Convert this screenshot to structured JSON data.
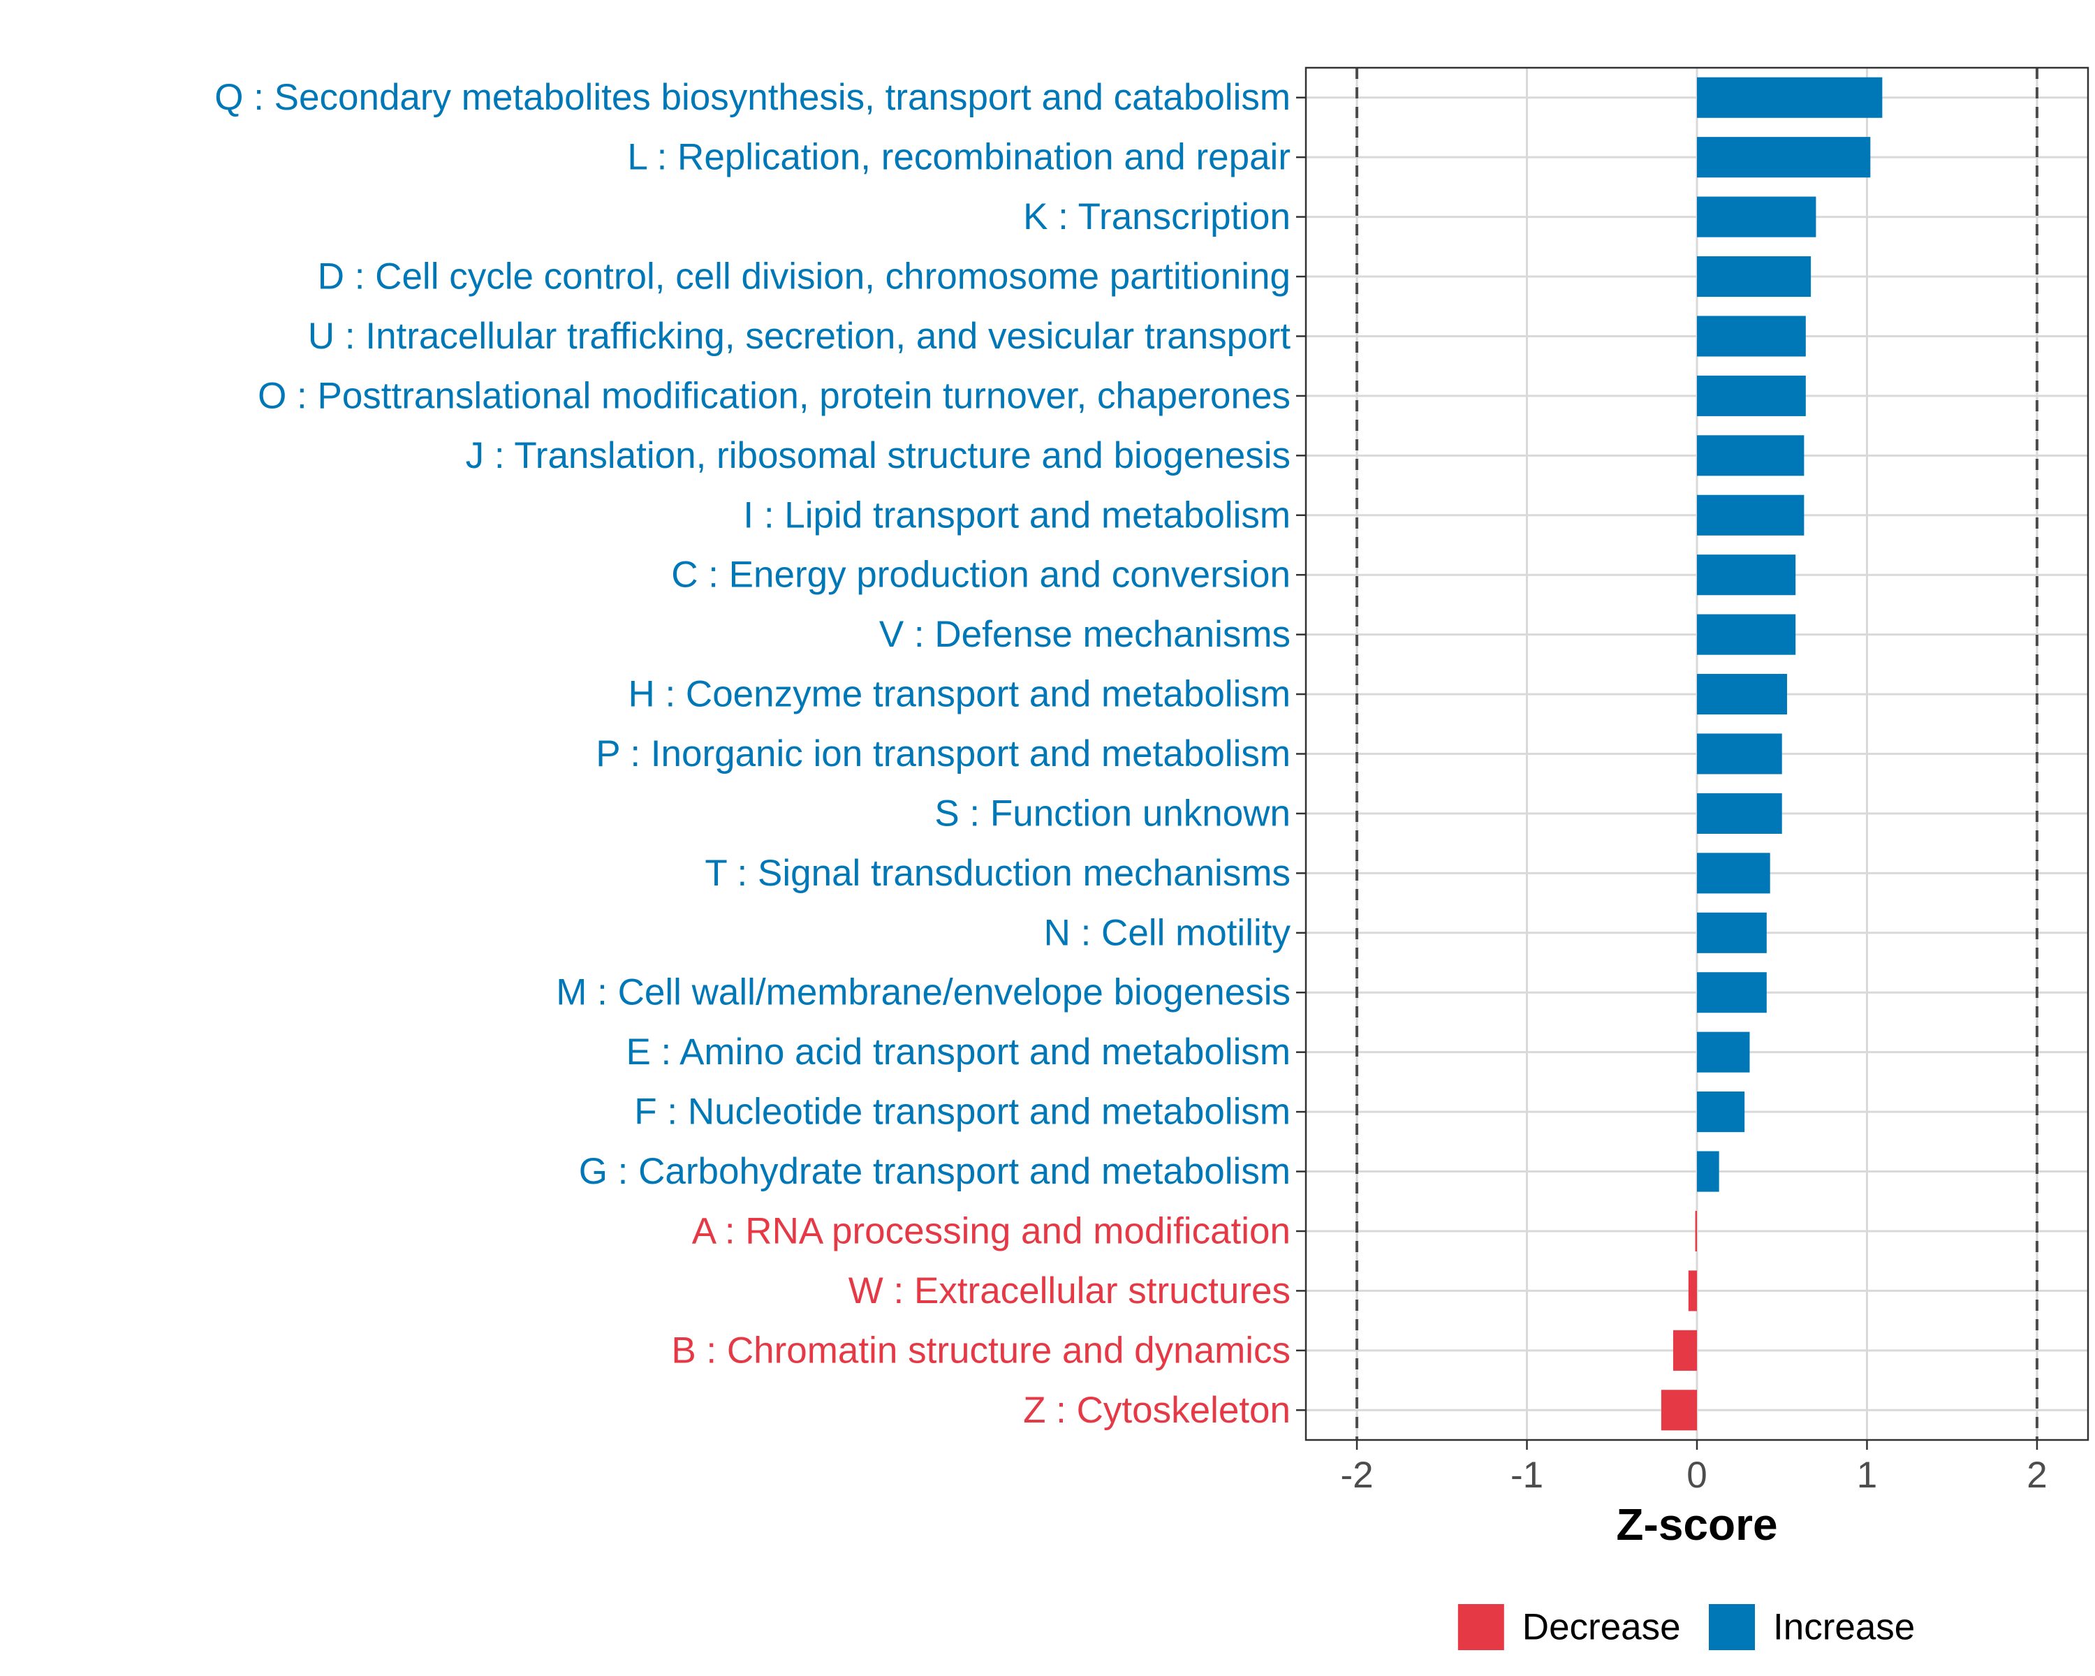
{
  "chart_data": {
    "type": "bar",
    "orientation": "horizontal",
    "title": "",
    "xlabel": "Z-score",
    "ylabel": "",
    "xlim": [
      -2.3,
      2.3
    ],
    "x_ticks": [
      -2,
      -1,
      0,
      1,
      2
    ],
    "x_tick_labels": [
      "-2",
      "-1",
      "0",
      "1",
      "2"
    ],
    "reference_lines": [
      -2,
      2
    ],
    "grid": true,
    "legend_position": "bottom",
    "colors": {
      "Decrease": "#e63946",
      "Increase": "#0077b6"
    },
    "legend": [
      {
        "label": "Decrease",
        "color": "#e63946"
      },
      {
        "label": "Increase",
        "color": "#0077b6"
      }
    ],
    "categories": [
      "Q : Secondary metabolites biosynthesis, transport and catabolism",
      "L : Replication, recombination and repair",
      "K : Transcription",
      "D : Cell cycle control, cell division, chromosome partitioning",
      "U : Intracellular trafficking, secretion, and vesicular transport",
      "O : Posttranslational modification, protein turnover, chaperones",
      "J : Translation, ribosomal structure and biogenesis",
      "I : Lipid transport and metabolism",
      "C : Energy production and conversion",
      "V : Defense mechanisms",
      "H : Coenzyme transport and metabolism",
      "P : Inorganic ion transport and metabolism",
      "S : Function unknown",
      "T : Signal transduction mechanisms",
      "N : Cell motility",
      "M : Cell wall/membrane/envelope biogenesis",
      "E : Amino acid transport and metabolism",
      "F : Nucleotide transport and metabolism",
      "G : Carbohydrate transport and metabolism",
      "A : RNA processing and modification",
      "W : Extracellular structures",
      "B : Chromatin structure and dynamics",
      "Z : Cytoskeleton"
    ],
    "values": [
      1.09,
      1.02,
      0.7,
      0.67,
      0.64,
      0.64,
      0.63,
      0.63,
      0.58,
      0.58,
      0.53,
      0.5,
      0.5,
      0.43,
      0.41,
      0.41,
      0.31,
      0.28,
      0.13,
      -0.01,
      -0.05,
      -0.14,
      -0.21
    ],
    "groups": [
      "Increase",
      "Increase",
      "Increase",
      "Increase",
      "Increase",
      "Increase",
      "Increase",
      "Increase",
      "Increase",
      "Increase",
      "Increase",
      "Increase",
      "Increase",
      "Increase",
      "Increase",
      "Increase",
      "Increase",
      "Increase",
      "Increase",
      "Decrease",
      "Decrease",
      "Decrease",
      "Decrease"
    ]
  }
}
